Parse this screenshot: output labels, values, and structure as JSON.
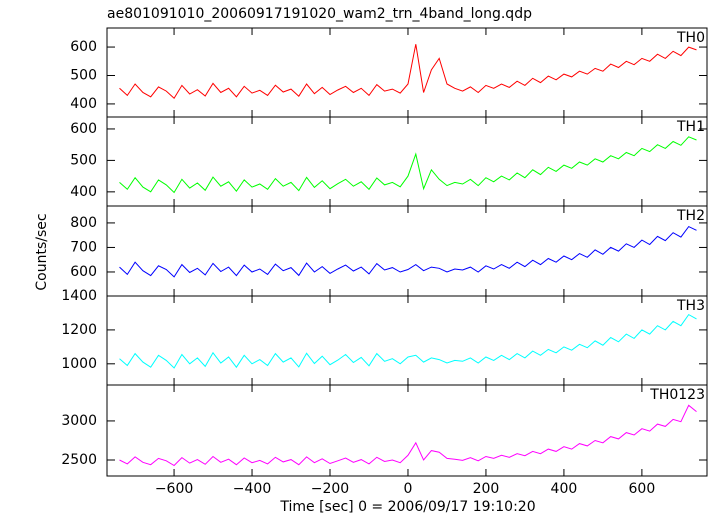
{
  "chart_data": {
    "type": "line",
    "title": "ae801091010_20060917191020_wam2_trn_4band_long.qdp",
    "xlabel": "Time [sec] 0 = 2006/09/17 19:10:20",
    "ylabel": "Counts/sec",
    "xlim": [
      -772,
      767
    ],
    "xticks": [
      {
        "value": -600,
        "label": "−600"
      },
      {
        "value": -400,
        "label": "−400"
      },
      {
        "value": -200,
        "label": "−200"
      },
      0,
      200,
      400,
      600
    ],
    "x": [
      -740,
      -720,
      -700,
      -680,
      -660,
      -640,
      -620,
      -600,
      -580,
      -560,
      -540,
      -520,
      -500,
      -480,
      -460,
      -440,
      -420,
      -400,
      -380,
      -360,
      -340,
      -320,
      -300,
      -280,
      -260,
      -240,
      -220,
      -200,
      -180,
      -160,
      -140,
      -120,
      -100,
      -80,
      -60,
      -40,
      -20,
      0,
      20,
      40,
      60,
      80,
      100,
      120,
      140,
      160,
      180,
      200,
      220,
      240,
      260,
      280,
      300,
      320,
      340,
      360,
      380,
      400,
      420,
      440,
      460,
      480,
      500,
      520,
      540,
      560,
      580,
      600,
      620,
      640,
      660,
      680,
      700,
      720,
      740
    ],
    "panels": [
      {
        "name": "TH0",
        "color": "#ff0000",
        "ylim": [
          354,
          667
        ],
        "yticks": [
          400,
          500,
          600
        ],
        "values": [
          455,
          430,
          470,
          440,
          425,
          460,
          445,
          420,
          465,
          435,
          450,
          428,
          472,
          440,
          455,
          425,
          462,
          438,
          448,
          430,
          466,
          442,
          452,
          427,
          470,
          436,
          458,
          433,
          449,
          462,
          440,
          455,
          430,
          468,
          445,
          452,
          438,
          470,
          610,
          440,
          520,
          560,
          470,
          455,
          445,
          460,
          440,
          465,
          455,
          470,
          458,
          480,
          465,
          490,
          475,
          498,
          485,
          505,
          495,
          515,
          505,
          525,
          515,
          540,
          528,
          550,
          538,
          560,
          550,
          575,
          560,
          585,
          570,
          600,
          590
        ]
      },
      {
        "name": "TH1",
        "color": "#00ff00",
        "ylim": [
          355,
          638
        ],
        "yticks": [
          400,
          500,
          600
        ],
        "values": [
          430,
          408,
          445,
          415,
          400,
          438,
          422,
          398,
          440,
          412,
          428,
          405,
          447,
          418,
          432,
          402,
          438,
          415,
          425,
          408,
          442,
          418,
          430,
          404,
          446,
          414,
          435,
          410,
          426,
          440,
          418,
          432,
          408,
          444,
          422,
          430,
          416,
          450,
          520,
          410,
          470,
          440,
          420,
          430,
          425,
          440,
          420,
          445,
          432,
          450,
          438,
          460,
          445,
          470,
          455,
          478,
          465,
          485,
          475,
          495,
          485,
          505,
          495,
          515,
          505,
          525,
          515,
          538,
          528,
          550,
          538,
          560,
          548,
          575,
          565
        ]
      },
      {
        "name": "TH2",
        "color": "#0000ff",
        "ylim": [
          502,
          869
        ],
        "yticks": [
          600,
          700,
          800
        ],
        "values": [
          620,
          590,
          640,
          605,
          585,
          625,
          610,
          580,
          630,
          598,
          615,
          588,
          635,
          602,
          620,
          585,
          628,
          600,
          612,
          590,
          632,
          605,
          618,
          586,
          636,
          600,
          622,
          594,
          612,
          628,
          604,
          620,
          592,
          634,
          608,
          618,
          600,
          610,
          630,
          605,
          620,
          615,
          600,
          612,
          608,
          620,
          600,
          625,
          612,
          630,
          615,
          640,
          622,
          648,
          630,
          655,
          640,
          665,
          650,
          675,
          660,
          690,
          672,
          700,
          685,
          715,
          700,
          730,
          712,
          745,
          728,
          760,
          742,
          785,
          770
        ]
      },
      {
        "name": "TH3",
        "color": "#00ffff",
        "ylim": [
          875,
          1400
        ],
        "yticks": [
          1000,
          1200,
          1400
        ],
        "values": [
          1030,
          990,
          1060,
          1010,
          980,
          1050,
          1020,
          975,
          1055,
          1000,
          1035,
          985,
          1065,
          1005,
          1040,
          980,
          1050,
          1000,
          1025,
          990,
          1060,
          1010,
          1035,
          982,
          1062,
          1002,
          1045,
          995,
          1022,
          1055,
          1008,
          1038,
          988,
          1060,
          1015,
          1030,
          1000,
          1040,
          1050,
          1010,
          1035,
          1025,
          1005,
          1020,
          1015,
          1035,
          1005,
          1040,
          1020,
          1050,
          1025,
          1060,
          1035,
          1075,
          1050,
          1085,
          1065,
          1100,
          1080,
          1115,
          1095,
          1135,
          1110,
          1155,
          1130,
          1175,
          1150,
          1200,
          1175,
          1225,
          1200,
          1250,
          1225,
          1290,
          1265
        ]
      },
      {
        "name": "TH0123",
        "color": "#ff00ff",
        "ylim": [
          2295,
          3460
        ],
        "yticks": [
          2500,
          3000
        ],
        "values": [
          2500,
          2450,
          2540,
          2470,
          2440,
          2520,
          2490,
          2430,
          2530,
          2460,
          2505,
          2445,
          2545,
          2470,
          2510,
          2440,
          2525,
          2465,
          2495,
          2450,
          2535,
          2475,
          2505,
          2440,
          2540,
          2465,
          2515,
          2455,
          2490,
          2525,
          2470,
          2505,
          2450,
          2535,
          2480,
          2500,
          2465,
          2560,
          2720,
          2500,
          2620,
          2600,
          2520,
          2510,
          2495,
          2530,
          2490,
          2545,
          2520,
          2560,
          2535,
          2580,
          2555,
          2610,
          2580,
          2640,
          2610,
          2670,
          2640,
          2710,
          2680,
          2750,
          2720,
          2800,
          2770,
          2850,
          2820,
          2900,
          2870,
          2960,
          2930,
          3020,
          2990,
          3200,
          3120
        ]
      }
    ]
  }
}
